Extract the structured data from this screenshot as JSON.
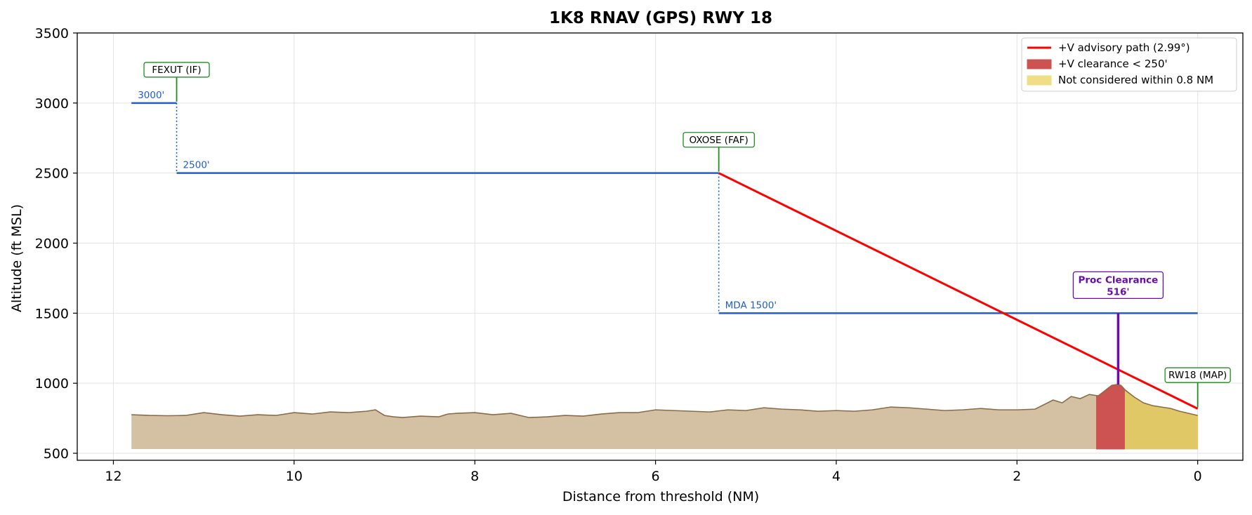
{
  "chart_data": {
    "type": "line",
    "title": "1K8  RNAV (GPS) RWY 18",
    "xlabel": "Distance from threshold (NM)",
    "ylabel": "Altitude (ft MSL)",
    "xlim": [
      12.4,
      -0.5
    ],
    "ylim": [
      450,
      3500
    ],
    "x_ticks": [
      12,
      10,
      8,
      6,
      4,
      2,
      0
    ],
    "y_ticks": [
      500,
      1000,
      1500,
      2000,
      2500,
      3000,
      3500
    ],
    "grid": true,
    "legend_position": "top-right",
    "legend": [
      {
        "label": "+V advisory path (2.99°)",
        "kind": "line",
        "color": "#ff0000"
      },
      {
        "label": "+V clearance < 250'",
        "kind": "patch",
        "color": "#cd5252"
      },
      {
        "label": "Not considered within 0.8 NM",
        "kind": "patch",
        "color": "#f0de85"
      }
    ],
    "step_altitudes": [
      {
        "x": [
          11.8,
          11.3
        ],
        "y": 3000,
        "label": "3000'"
      },
      {
        "x": [
          11.3,
          5.3
        ],
        "y": 2500,
        "label": "2500'"
      },
      {
        "x": [
          5.3,
          0.0
        ],
        "y": 1500,
        "label": "MDA 1500'"
      }
    ],
    "step_color": "#1f5fc8",
    "step_drops": [
      {
        "x": 11.3,
        "y": [
          3000,
          2500
        ]
      },
      {
        "x": 5.3,
        "y": [
          2500,
          1500
        ]
      }
    ],
    "advisory_path": {
      "x": [
        5.3,
        0.0
      ],
      "y": [
        2500,
        818
      ],
      "color": "#ff0000"
    },
    "fixes": [
      {
        "name": "FEXUT (IF)",
        "x": 11.3,
        "y_base": 3000,
        "y_label": 3240
      },
      {
        "name": "OXOSE (FAF)",
        "x": 5.3,
        "y_base": 2500,
        "y_label": 2740
      },
      {
        "name": "RW18 (MAP)",
        "x": 0.0,
        "y_base": 818,
        "y_label": 1060
      }
    ],
    "proc_clearance": {
      "line1": "Proc Clearance",
      "line2": "516'",
      "x": 0.88,
      "y_from": 990,
      "y_to": 1500,
      "y_label": 1700,
      "color": "#6a0dad"
    },
    "terrain": {
      "floor": 530,
      "x": [
        11.8,
        11.6,
        11.4,
        11.2,
        11.0,
        10.8,
        10.6,
        10.4,
        10.2,
        10.0,
        9.8,
        9.6,
        9.4,
        9.2,
        9.1,
        9.0,
        8.9,
        8.8,
        8.6,
        8.4,
        8.3,
        8.2,
        8.0,
        7.8,
        7.6,
        7.5,
        7.4,
        7.2,
        7.0,
        6.8,
        6.6,
        6.4,
        6.2,
        6.0,
        5.8,
        5.6,
        5.4,
        5.2,
        5.0,
        4.8,
        4.6,
        4.4,
        4.2,
        4.0,
        3.8,
        3.6,
        3.4,
        3.2,
        3.0,
        2.8,
        2.6,
        2.4,
        2.2,
        2.0,
        1.8,
        1.6,
        1.5,
        1.4,
        1.3,
        1.2,
        1.1,
        1.0,
        0.95,
        0.9,
        0.85,
        0.8,
        0.7,
        0.6,
        0.5,
        0.4,
        0.3,
        0.2,
        0.1,
        0.0
      ],
      "y": [
        775,
        770,
        768,
        770,
        790,
        775,
        765,
        775,
        770,
        790,
        780,
        795,
        790,
        800,
        810,
        770,
        760,
        755,
        765,
        760,
        780,
        785,
        790,
        775,
        785,
        770,
        755,
        760,
        770,
        765,
        780,
        790,
        790,
        810,
        805,
        800,
        795,
        810,
        805,
        825,
        815,
        810,
        800,
        805,
        800,
        810,
        830,
        825,
        815,
        805,
        810,
        820,
        810,
        810,
        815,
        880,
        860,
        905,
        890,
        920,
        910,
        960,
        985,
        990,
        985,
        950,
        900,
        860,
        840,
        830,
        820,
        800,
        785,
        770
      ],
      "color": "#d4c0a3",
      "edge": "#8b6b4a",
      "red_band": [
        1.12,
        0.81
      ],
      "red_color": "#cd5252",
      "yellow_band": [
        0.81,
        0.0
      ],
      "yellow_color": "#e0c866"
    }
  }
}
